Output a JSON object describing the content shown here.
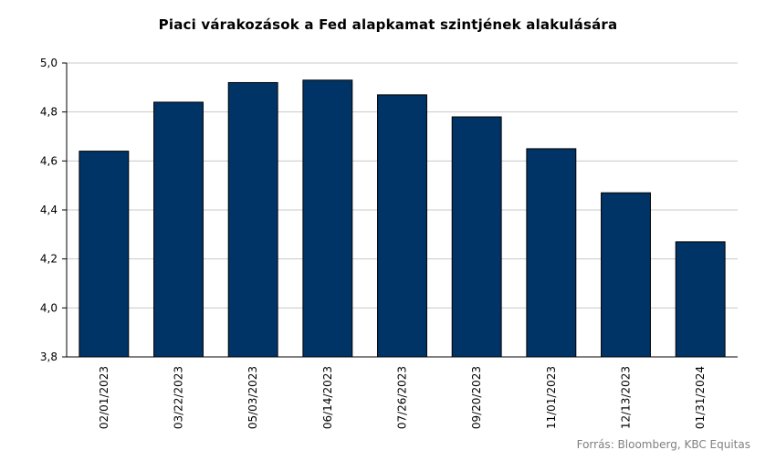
{
  "chart_data": {
    "type": "bar",
    "title": "Piaci várakozások a Fed alapkamat szintjének alakulására",
    "source": "Forrás: Bloomberg, KBC Equitas",
    "categories": [
      "02/01/2023",
      "03/22/2023",
      "05/03/2023",
      "06/14/2023",
      "07/26/2023",
      "09/20/2023",
      "11/01/2023",
      "12/13/2023",
      "01/31/2024"
    ],
    "values": [
      4.64,
      4.84,
      4.92,
      4.93,
      4.87,
      4.78,
      4.65,
      4.47,
      4.27
    ],
    "ylim": [
      3.8,
      5.0
    ],
    "yticks": [
      "3,8",
      "4,0",
      "4,2",
      "4,4",
      "4,6",
      "4,8",
      "5,0"
    ],
    "xlabel": "",
    "ylabel": "",
    "grid": true,
    "bar_color": "#003366"
  }
}
